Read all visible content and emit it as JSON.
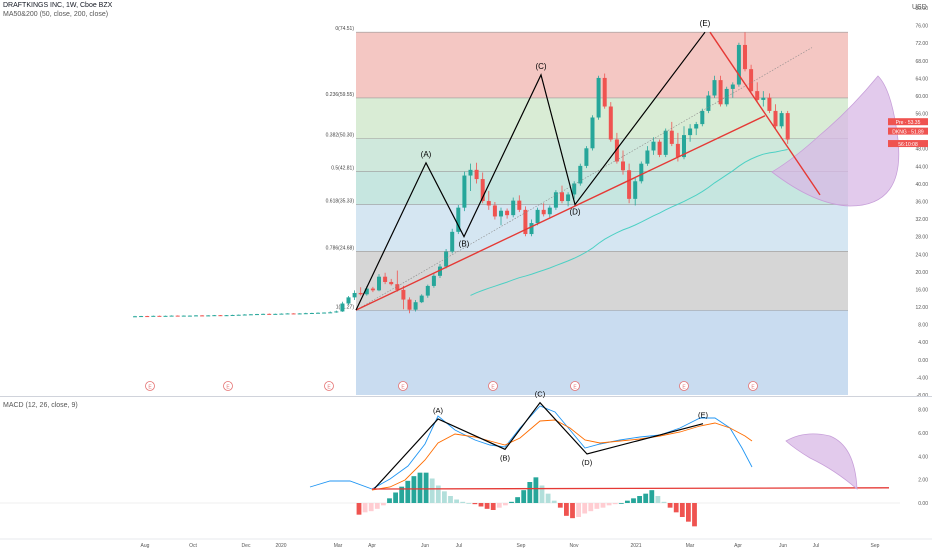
{
  "header": {
    "symbol_line": "DRAFTKINGS INC, 1W, Cboe BZX",
    "indicator_line": "MA50&200 (50, close, 200, close)",
    "macd_line": "MACD (12, 26, close, 9)",
    "currency": "USD"
  },
  "colors": {
    "up": "#26a69a",
    "down": "#ef5350",
    "trend": "#e53935",
    "wave": "#000000",
    "ma": "#4dd0c4",
    "fib_0": "#f4c7c3",
    "fib_0236": "#d9ecd5",
    "fib_0382": "#cfe8dc",
    "fib_05": "#c6e6e0",
    "fib_0618": "#d5e6f2",
    "fib_0786": "#d6d6d6",
    "fib_1": "#c9dcf0",
    "projection": "#d8b8e6"
  },
  "chart_data": [
    {
      "type": "candlestick",
      "title": "DRAFTKINGS INC, 1W, Cboe BZX",
      "y_axis": {
        "range": [
          -8,
          80
        ],
        "ticks": [
          "80.00",
          "76.00",
          "72.00",
          "68.00",
          "64.00",
          "60.00",
          "56.00",
          "52.00",
          "48.00",
          "44.00",
          "40.00",
          "36.00",
          "32.00",
          "28.00",
          "24.00",
          "20.00",
          "16.00",
          "12.00",
          "8.00",
          "4.00",
          "0.00",
          "-4.00",
          "-8.00"
        ]
      },
      "x_axis": {
        "ticks": [
          "Aug",
          "Oct",
          "Dec",
          "2020",
          "Mar",
          "Apr",
          "Jun",
          "Jul",
          "Sep",
          "Nov",
          "2021",
          "Mar",
          "Apr",
          "Jun",
          "Jul",
          "Sep"
        ]
      },
      "price_labels": [
        {
          "text": "Pre · 53.35",
          "value": 53.35,
          "color": "#ef5350"
        },
        {
          "text": "DKNG · 51.89",
          "value": 51.89,
          "color": "#ef5350"
        },
        {
          "text": "56:10:08",
          "value": 50.2,
          "color": "#ef5350"
        }
      ],
      "fib_levels": [
        {
          "label": "0(74.51)",
          "ratio": "0",
          "value": 74.51
        },
        {
          "label": "0.236(59.55)",
          "ratio": "0.236",
          "value": 59.55
        },
        {
          "label": "0.382(50.30)",
          "ratio": "0.382",
          "value": 50.3
        },
        {
          "label": "0.5(42.81)",
          "ratio": "0.5",
          "value": 42.81
        },
        {
          "label": "0.618(35.33)",
          "ratio": "0.618",
          "value": 35.33
        },
        {
          "label": "0.786(24.68)",
          "ratio": "0.786",
          "value": 24.68
        },
        {
          "label": "1(11.27)",
          "ratio": "1",
          "value": 11.27
        }
      ],
      "waves": [
        {
          "label": "(A)",
          "value": 44.8
        },
        {
          "label": "(B)",
          "value": 28.0
        },
        {
          "label": "(C)",
          "value": 64.8
        },
        {
          "label": "(D)",
          "value": 35.3
        },
        {
          "label": "(E)",
          "value": 74.5
        }
      ],
      "earnings_markers": [
        "E",
        "E",
        "E",
        "E",
        "E",
        "E",
        "E",
        "E"
      ],
      "candles": [
        {
          "o": 9.9,
          "h": 10.0,
          "l": 9.8,
          "c": 9.9
        },
        {
          "o": 9.9,
          "h": 10.0,
          "l": 9.8,
          "c": 9.95
        },
        {
          "o": 9.95,
          "h": 10.0,
          "l": 9.85,
          "c": 9.9
        },
        {
          "o": 9.9,
          "h": 10.05,
          "l": 9.85,
          "c": 10.0
        },
        {
          "o": 10.0,
          "h": 10.05,
          "l": 9.9,
          "c": 9.95
        },
        {
          "o": 9.95,
          "h": 10.05,
          "l": 9.9,
          "c": 10.0
        },
        {
          "o": 10.0,
          "h": 10.1,
          "l": 9.9,
          "c": 10.05
        },
        {
          "o": 10.05,
          "h": 10.1,
          "l": 9.95,
          "c": 10.0
        },
        {
          "o": 10.0,
          "h": 10.1,
          "l": 9.95,
          "c": 10.05
        },
        {
          "o": 10.05,
          "h": 10.1,
          "l": 10.0,
          "c": 10.05
        },
        {
          "o": 10.05,
          "h": 10.15,
          "l": 10.0,
          "c": 10.1
        },
        {
          "o": 10.1,
          "h": 10.15,
          "l": 10.0,
          "c": 10.05
        },
        {
          "o": 10.05,
          "h": 10.15,
          "l": 10.0,
          "c": 10.1
        },
        {
          "o": 10.1,
          "h": 10.2,
          "l": 10.05,
          "c": 10.15
        },
        {
          "o": 10.15,
          "h": 10.2,
          "l": 10.05,
          "c": 10.1
        },
        {
          "o": 10.1,
          "h": 10.2,
          "l": 10.05,
          "c": 10.15
        },
        {
          "o": 10.15,
          "h": 10.25,
          "l": 10.1,
          "c": 10.2
        },
        {
          "o": 10.2,
          "h": 10.3,
          "l": 10.1,
          "c": 10.25
        },
        {
          "o": 10.25,
          "h": 10.4,
          "l": 10.15,
          "c": 10.3
        },
        {
          "o": 10.3,
          "h": 10.4,
          "l": 10.2,
          "c": 10.35
        },
        {
          "o": 10.35,
          "h": 10.45,
          "l": 10.25,
          "c": 10.4
        },
        {
          "o": 10.4,
          "h": 10.5,
          "l": 10.3,
          "c": 10.45
        },
        {
          "o": 10.45,
          "h": 10.55,
          "l": 10.3,
          "c": 10.4
        },
        {
          "o": 10.4,
          "h": 10.5,
          "l": 10.3,
          "c": 10.45
        },
        {
          "o": 10.45,
          "h": 10.55,
          "l": 10.35,
          "c": 10.5
        },
        {
          "o": 10.5,
          "h": 10.6,
          "l": 10.4,
          "c": 10.55
        },
        {
          "o": 10.55,
          "h": 10.6,
          "l": 10.4,
          "c": 10.5
        },
        {
          "o": 10.5,
          "h": 10.6,
          "l": 10.4,
          "c": 10.55
        },
        {
          "o": 10.55,
          "h": 10.7,
          "l": 10.45,
          "c": 10.6
        },
        {
          "o": 10.6,
          "h": 10.7,
          "l": 10.5,
          "c": 10.65
        },
        {
          "o": 10.65,
          "h": 10.8,
          "l": 10.55,
          "c": 10.7
        },
        {
          "o": 10.7,
          "h": 10.8,
          "l": 10.6,
          "c": 10.75
        },
        {
          "o": 10.75,
          "h": 11.0,
          "l": 10.65,
          "c": 10.8
        },
        {
          "o": 10.8,
          "h": 11.2,
          "l": 10.7,
          "c": 11.0
        },
        {
          "o": 11.0,
          "h": 13.2,
          "l": 10.9,
          "c": 12.8
        },
        {
          "o": 12.8,
          "h": 14.5,
          "l": 12.5,
          "c": 14.2
        },
        {
          "o": 14.2,
          "h": 15.8,
          "l": 13.6,
          "c": 15.2
        },
        {
          "o": 15.2,
          "h": 16.5,
          "l": 14.6,
          "c": 14.9
        },
        {
          "o": 14.9,
          "h": 16.8,
          "l": 14.6,
          "c": 16.2
        },
        {
          "o": 16.2,
          "h": 16.6,
          "l": 15.4,
          "c": 15.8
        },
        {
          "o": 15.8,
          "h": 19.5,
          "l": 15.6,
          "c": 18.9
        },
        {
          "o": 18.9,
          "h": 19.8,
          "l": 17.2,
          "c": 17.7
        },
        {
          "o": 17.7,
          "h": 18.4,
          "l": 16.9,
          "c": 17.2
        },
        {
          "o": 17.2,
          "h": 20.3,
          "l": 15.5,
          "c": 15.9
        },
        {
          "o": 15.9,
          "h": 16.8,
          "l": 11.5,
          "c": 13.7
        },
        {
          "o": 13.7,
          "h": 14.2,
          "l": 10.6,
          "c": 11.4
        },
        {
          "o": 11.4,
          "h": 13.6,
          "l": 11.0,
          "c": 13.1
        },
        {
          "o": 13.1,
          "h": 14.9,
          "l": 12.9,
          "c": 14.6
        },
        {
          "o": 14.6,
          "h": 17.1,
          "l": 14.1,
          "c": 16.8
        },
        {
          "o": 16.8,
          "h": 19.6,
          "l": 16.4,
          "c": 19.1
        },
        {
          "o": 19.1,
          "h": 21.8,
          "l": 18.6,
          "c": 21.2
        },
        {
          "o": 21.2,
          "h": 25.2,
          "l": 20.8,
          "c": 24.6
        },
        {
          "o": 24.6,
          "h": 29.8,
          "l": 24.2,
          "c": 29.1
        },
        {
          "o": 29.1,
          "h": 35.2,
          "l": 28.6,
          "c": 34.6
        },
        {
          "o": 34.6,
          "h": 42.8,
          "l": 33.8,
          "c": 41.9
        },
        {
          "o": 41.9,
          "h": 44.6,
          "l": 38.4,
          "c": 43.2
        },
        {
          "o": 43.2,
          "h": 44.8,
          "l": 40.1,
          "c": 41.1
        },
        {
          "o": 41.1,
          "h": 42.6,
          "l": 35.6,
          "c": 36.1
        },
        {
          "o": 36.1,
          "h": 38.4,
          "l": 34.1,
          "c": 35.1
        },
        {
          "o": 35.1,
          "h": 35.9,
          "l": 31.9,
          "c": 32.6
        },
        {
          "o": 32.6,
          "h": 34.6,
          "l": 30.6,
          "c": 33.9
        },
        {
          "o": 33.9,
          "h": 34.4,
          "l": 32.1,
          "c": 32.9
        },
        {
          "o": 32.9,
          "h": 36.9,
          "l": 32.4,
          "c": 36.2
        },
        {
          "o": 36.2,
          "h": 37.4,
          "l": 33.6,
          "c": 34.1
        },
        {
          "o": 34.1,
          "h": 34.9,
          "l": 28.1,
          "c": 28.6
        },
        {
          "o": 28.6,
          "h": 31.9,
          "l": 28.1,
          "c": 31.1
        },
        {
          "o": 31.1,
          "h": 34.6,
          "l": 30.6,
          "c": 34.1
        },
        {
          "o": 34.1,
          "h": 35.6,
          "l": 32.6,
          "c": 33.1
        },
        {
          "o": 33.1,
          "h": 35.1,
          "l": 32.1,
          "c": 34.6
        },
        {
          "o": 34.6,
          "h": 38.6,
          "l": 34.1,
          "c": 38.1
        },
        {
          "o": 38.1,
          "h": 39.6,
          "l": 35.6,
          "c": 36.1
        },
        {
          "o": 36.1,
          "h": 38.1,
          "l": 34.9,
          "c": 37.6
        },
        {
          "o": 37.6,
          "h": 40.6,
          "l": 36.6,
          "c": 40.1
        },
        {
          "o": 40.1,
          "h": 44.6,
          "l": 39.6,
          "c": 44.1
        },
        {
          "o": 44.1,
          "h": 48.6,
          "l": 43.6,
          "c": 48.1
        },
        {
          "o": 48.1,
          "h": 55.6,
          "l": 47.6,
          "c": 55.1
        },
        {
          "o": 55.1,
          "h": 64.6,
          "l": 54.6,
          "c": 64.1
        },
        {
          "o": 64.1,
          "h": 65.1,
          "l": 57.1,
          "c": 57.6
        },
        {
          "o": 57.6,
          "h": 58.6,
          "l": 49.6,
          "c": 50.1
        },
        {
          "o": 50.1,
          "h": 51.6,
          "l": 44.6,
          "c": 45.1
        },
        {
          "o": 45.1,
          "h": 47.6,
          "l": 42.1,
          "c": 43.1
        },
        {
          "o": 43.1,
          "h": 44.6,
          "l": 35.6,
          "c": 36.6
        },
        {
          "o": 36.6,
          "h": 41.6,
          "l": 35.1,
          "c": 40.6
        },
        {
          "o": 40.6,
          "h": 45.1,
          "l": 40.1,
          "c": 44.6
        },
        {
          "o": 44.6,
          "h": 48.6,
          "l": 44.1,
          "c": 47.6
        },
        {
          "o": 47.6,
          "h": 50.6,
          "l": 46.6,
          "c": 49.6
        },
        {
          "o": 49.6,
          "h": 50.1,
          "l": 46.1,
          "c": 46.6
        },
        {
          "o": 46.6,
          "h": 52.6,
          "l": 46.1,
          "c": 52.1
        },
        {
          "o": 52.1,
          "h": 54.1,
          "l": 48.6,
          "c": 49.1
        },
        {
          "o": 49.1,
          "h": 51.6,
          "l": 45.1,
          "c": 46.1
        },
        {
          "o": 46.1,
          "h": 53.1,
          "l": 45.6,
          "c": 51.1
        },
        {
          "o": 51.1,
          "h": 53.6,
          "l": 49.6,
          "c": 52.6
        },
        {
          "o": 52.6,
          "h": 54.1,
          "l": 51.1,
          "c": 53.6
        },
        {
          "o": 53.6,
          "h": 57.1,
          "l": 53.1,
          "c": 56.6
        },
        {
          "o": 56.6,
          "h": 61.1,
          "l": 56.1,
          "c": 60.1
        },
        {
          "o": 60.1,
          "h": 64.6,
          "l": 59.6,
          "c": 63.6
        },
        {
          "o": 63.6,
          "h": 64.6,
          "l": 57.6,
          "c": 58.1
        },
        {
          "o": 58.1,
          "h": 62.1,
          "l": 57.6,
          "c": 61.6
        },
        {
          "o": 61.6,
          "h": 63.1,
          "l": 59.6,
          "c": 62.6
        },
        {
          "o": 62.6,
          "h": 72.1,
          "l": 62.1,
          "c": 71.6
        },
        {
          "o": 71.6,
          "h": 74.5,
          "l": 65.6,
          "c": 66.1
        },
        {
          "o": 66.1,
          "h": 67.1,
          "l": 60.6,
          "c": 61.1
        },
        {
          "o": 61.1,
          "h": 63.1,
          "l": 58.6,
          "c": 59.1
        },
        {
          "o": 59.1,
          "h": 61.1,
          "l": 57.6,
          "c": 59.6
        },
        {
          "o": 59.6,
          "h": 60.6,
          "l": 56.1,
          "c": 56.6
        },
        {
          "o": 56.6,
          "h": 58.1,
          "l": 52.6,
          "c": 53.1
        },
        {
          "o": 53.1,
          "h": 56.6,
          "l": 52.6,
          "c": 56.1
        },
        {
          "o": 56.1,
          "h": 56.6,
          "l": 49.1,
          "c": 50.1
        }
      ]
    },
    {
      "type": "macd",
      "title": "MACD (12, 26, close, 9)",
      "y_axis": {
        "range": [
          -3,
          9
        ],
        "ticks": [
          "8.00",
          "6.00",
          "4.00",
          "2.00",
          "0.00"
        ]
      },
      "waves": [
        {
          "label": "(A)",
          "value": 7.2
        },
        {
          "label": "(B)",
          "value": 4.6
        },
        {
          "label": "(C)",
          "value": 8.6
        },
        {
          "label": "(D)",
          "value": 4.2
        },
        {
          "label": "(E)",
          "value": 6.8
        }
      ],
      "histogram": [
        -1.0,
        -0.8,
        -0.7,
        -0.5,
        -0.2,
        0.4,
        0.9,
        1.4,
        1.9,
        2.3,
        2.6,
        2.6,
        2.1,
        1.5,
        1.0,
        0.6,
        0.3,
        0.1,
        0.0,
        -0.1,
        -0.3,
        -0.5,
        -0.6,
        -0.4,
        -0.2,
        0.1,
        0.5,
        1.1,
        1.8,
        2.2,
        1.5,
        0.8,
        0.2,
        -0.4,
        -1.1,
        -1.3,
        -1.2,
        -0.9,
        -0.7,
        -0.5,
        -0.4,
        -0.2,
        -0.1,
        0.0,
        0.2,
        0.4,
        0.6,
        0.8,
        1.1,
        0.6,
        0.1,
        -0.4,
        -0.8,
        -1.2,
        -1.6,
        -2.0
      ]
    }
  ]
}
